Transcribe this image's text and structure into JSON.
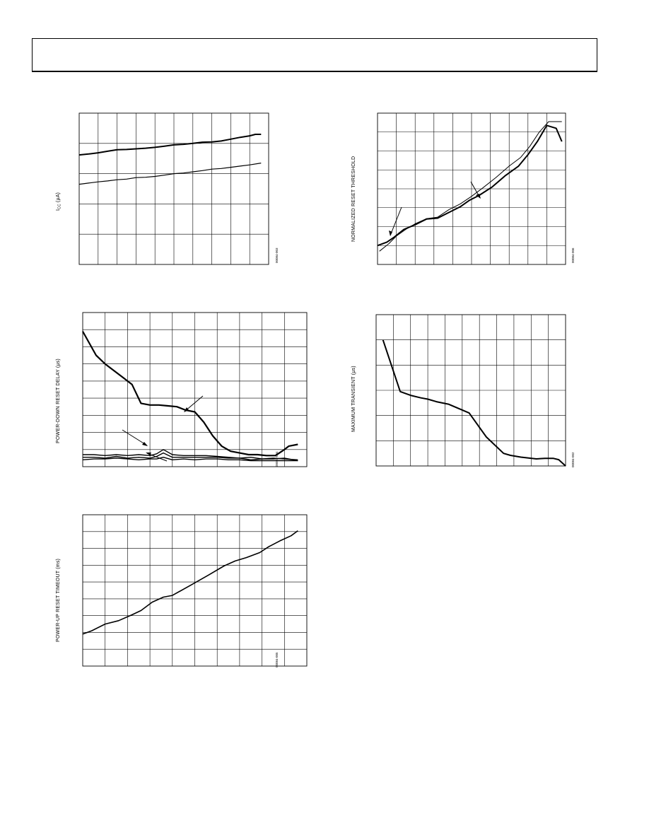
{
  "page": {
    "header_text": ""
  },
  "charts": [
    {
      "id": "icc",
      "ylabel_main": "I",
      "ylabel_sub": "CC",
      "ylabel_rest": " (µA)",
      "figure_id": "00084-003"
    },
    {
      "id": "threshold",
      "ylabel": "NORMALIZED RESET THRESHOLD",
      "figure_id": "00084-006"
    },
    {
      "id": "delay",
      "ylabel": "POWER-DOWN RESET DELAY (µs)",
      "figure_id": "00084-004"
    },
    {
      "id": "transient",
      "ylabel": "MAXIMUM TRANSIENT (µs)",
      "figure_id": "00084-002"
    },
    {
      "id": "timeout",
      "ylabel": "POWER-UP RESET TIMEOUT (ms)",
      "figure_id": "00084-005"
    }
  ],
  "chart_data": [
    {
      "type": "line",
      "id": "icc",
      "x_gridlines": 10,
      "y_gridlines": 5,
      "xlim": [
        0,
        10
      ],
      "ylim": [
        0,
        5
      ],
      "grid": true,
      "series": [
        {
          "x": [
            0,
            0.5,
            1,
            1.5,
            2,
            2.5,
            3,
            3.5,
            4,
            4.5,
            5,
            5.5,
            6,
            6.5,
            7,
            7.5,
            8,
            8.5,
            9,
            9.3,
            9.6
          ],
          "values": [
            3.62,
            3.65,
            3.69,
            3.74,
            3.79,
            3.8,
            3.82,
            3.84,
            3.87,
            3.91,
            3.95,
            3.97,
            4.0,
            4.04,
            4.05,
            4.08,
            4.14,
            4.2,
            4.25,
            4.3,
            4.3
          ],
          "stroke_width": 2.0
        },
        {
          "x": [
            0,
            0.5,
            1,
            1.5,
            2,
            2.5,
            3,
            3.5,
            4,
            4.5,
            5,
            5.5,
            6,
            6.5,
            7,
            7.5,
            8,
            8.5,
            9,
            9.6
          ],
          "values": [
            2.65,
            2.69,
            2.73,
            2.76,
            2.8,
            2.82,
            2.87,
            2.88,
            2.91,
            2.95,
            3.0,
            3.02,
            3.06,
            3.1,
            3.15,
            3.17,
            3.21,
            3.25,
            3.29,
            3.35
          ],
          "stroke_width": 1.2
        }
      ]
    },
    {
      "type": "line",
      "id": "threshold",
      "x_gridlines": 10,
      "y_gridlines": 8,
      "xlim": [
        0,
        10
      ],
      "ylim": [
        0,
        8
      ],
      "grid": true,
      "series": [
        {
          "x": [
            0,
            0.5,
            0.9,
            1.4,
            2,
            2.6,
            3.2,
            3.8,
            4.4,
            4.9,
            5.4,
            6.1,
            6.8,
            7.5,
            8,
            8.5,
            9,
            9.5,
            9.8
          ],
          "values": [
            1.0,
            1.18,
            1.45,
            1.85,
            2.1,
            2.4,
            2.45,
            2.75,
            3.05,
            3.4,
            3.65,
            4.1,
            4.7,
            5.2,
            5.8,
            6.5,
            7.35,
            7.2,
            6.5
          ],
          "stroke_width": 2.0
        },
        {
          "x": [
            0.1,
            0.6,
            1,
            1.5,
            2,
            2.6,
            3.2,
            3.8,
            4.4,
            5,
            5.6,
            6.3,
            7,
            7.6,
            8.1,
            8.6,
            9.1,
            9.5,
            9.8
          ],
          "values": [
            0.7,
            1.1,
            1.5,
            1.85,
            2.15,
            2.42,
            2.5,
            2.9,
            3.2,
            3.6,
            4.05,
            4.6,
            5.2,
            5.65,
            6.25,
            7.0,
            7.55,
            7.55,
            7.55
          ],
          "stroke_width": 1.0
        }
      ]
    },
    {
      "type": "line",
      "id": "delay",
      "x_gridlines": 10,
      "y_gridlines": 9,
      "xlim": [
        0,
        10
      ],
      "ylim": [
        0,
        9
      ],
      "grid": true,
      "series": [
        {
          "x": [
            0,
            0.3,
            0.6,
            1,
            1.4,
            1.8,
            2.2,
            2.6,
            3,
            3.4,
            3.8,
            4.2,
            4.6,
            5,
            5.4,
            5.8,
            6.2,
            6.6,
            7,
            7.4,
            7.8,
            8.2,
            8.6,
            9,
            9.2,
            9.6
          ],
          "values": [
            7.9,
            7.2,
            6.5,
            6.0,
            5.6,
            5.2,
            4.8,
            3.7,
            3.6,
            3.6,
            3.55,
            3.5,
            3.3,
            3.2,
            2.6,
            1.8,
            1.2,
            0.9,
            0.8,
            0.7,
            0.7,
            0.65,
            0.65,
            1.0,
            1.2,
            1.3
          ],
          "stroke_width": 2.2
        },
        {
          "x": [
            0,
            0.5,
            1,
            1.5,
            2,
            2.5,
            3,
            3.3,
            3.6,
            4,
            4.5,
            5,
            5.5,
            6,
            6.5,
            7,
            7.5,
            8,
            8.5,
            9,
            9.6
          ],
          "values": [
            0.4,
            0.45,
            0.45,
            0.5,
            0.45,
            0.4,
            0.45,
            0.45,
            0.55,
            0.4,
            0.45,
            0.4,
            0.45,
            0.45,
            0.4,
            0.4,
            0.35,
            0.35,
            0.35,
            0.35,
            0.35
          ],
          "stroke_width": 1.4
        },
        {
          "x": [
            0,
            0.5,
            1,
            1.5,
            2,
            2.5,
            3,
            3.3,
            3.6,
            4,
            4.5,
            5,
            5.5,
            6,
            6.5,
            7,
            7.5,
            8,
            8.5,
            9,
            9.6
          ],
          "values": [
            0.7,
            0.7,
            0.65,
            0.7,
            0.65,
            0.7,
            0.65,
            0.75,
            1.0,
            0.7,
            0.65,
            0.65,
            0.65,
            0.6,
            0.55,
            0.5,
            0.55,
            0.45,
            0.5,
            0.45,
            0.4
          ],
          "stroke_width": 1.4
        },
        {
          "x": [
            0,
            0.5,
            1,
            1.5,
            2,
            2.5,
            3,
            3.3,
            3.6,
            4,
            4.5,
            5,
            5.5,
            6,
            6.5,
            7,
            7.5,
            8,
            8.5,
            9,
            9.6
          ],
          "values": [
            0.55,
            0.55,
            0.5,
            0.6,
            0.5,
            0.55,
            0.5,
            0.6,
            0.8,
            0.55,
            0.55,
            0.55,
            0.55,
            0.55,
            0.5,
            0.5,
            0.4,
            0.45,
            0.45,
            0.5,
            0.35
          ],
          "stroke_width": 1.4
        }
      ]
    },
    {
      "type": "line",
      "id": "transient",
      "x_gridlines": 11,
      "y_gridlines": 6,
      "xlim": [
        0,
        11
      ],
      "ylim": [
        0,
        6
      ],
      "grid": true,
      "series": [
        {
          "x": [
            0.4,
            1.4,
            2,
            2.6,
            3,
            3.5,
            4.2,
            5.4,
            6.4,
            7.4,
            7.8,
            8.4,
            9.3,
            9.8,
            10.3,
            10.6,
            11
          ],
          "values": [
            5.0,
            2.95,
            2.8,
            2.7,
            2.65,
            2.55,
            2.45,
            2.1,
            1.15,
            0.5,
            0.42,
            0.35,
            0.28,
            0.3,
            0.3,
            0.25,
            0.0
          ],
          "stroke_width": 2.0
        }
      ]
    },
    {
      "type": "line",
      "id": "timeout",
      "x_gridlines": 10,
      "y_gridlines": 9,
      "xlim": [
        0,
        10
      ],
      "ylim": [
        0,
        9
      ],
      "grid": true,
      "series": [
        {
          "x": [
            0,
            0.4,
            1,
            1.6,
            2.2,
            2.6,
            3.1,
            3.6,
            4,
            4.8,
            5.6,
            6.3,
            6.8,
            7.3,
            7.9,
            8.3,
            8.8,
            9.3,
            9.6
          ],
          "values": [
            1.9,
            2.1,
            2.5,
            2.7,
            3.05,
            3.3,
            3.8,
            4.1,
            4.2,
            4.8,
            5.4,
            5.95,
            6.25,
            6.45,
            6.75,
            7.1,
            7.45,
            7.75,
            8.05
          ],
          "stroke_width": 1.6
        }
      ]
    }
  ]
}
